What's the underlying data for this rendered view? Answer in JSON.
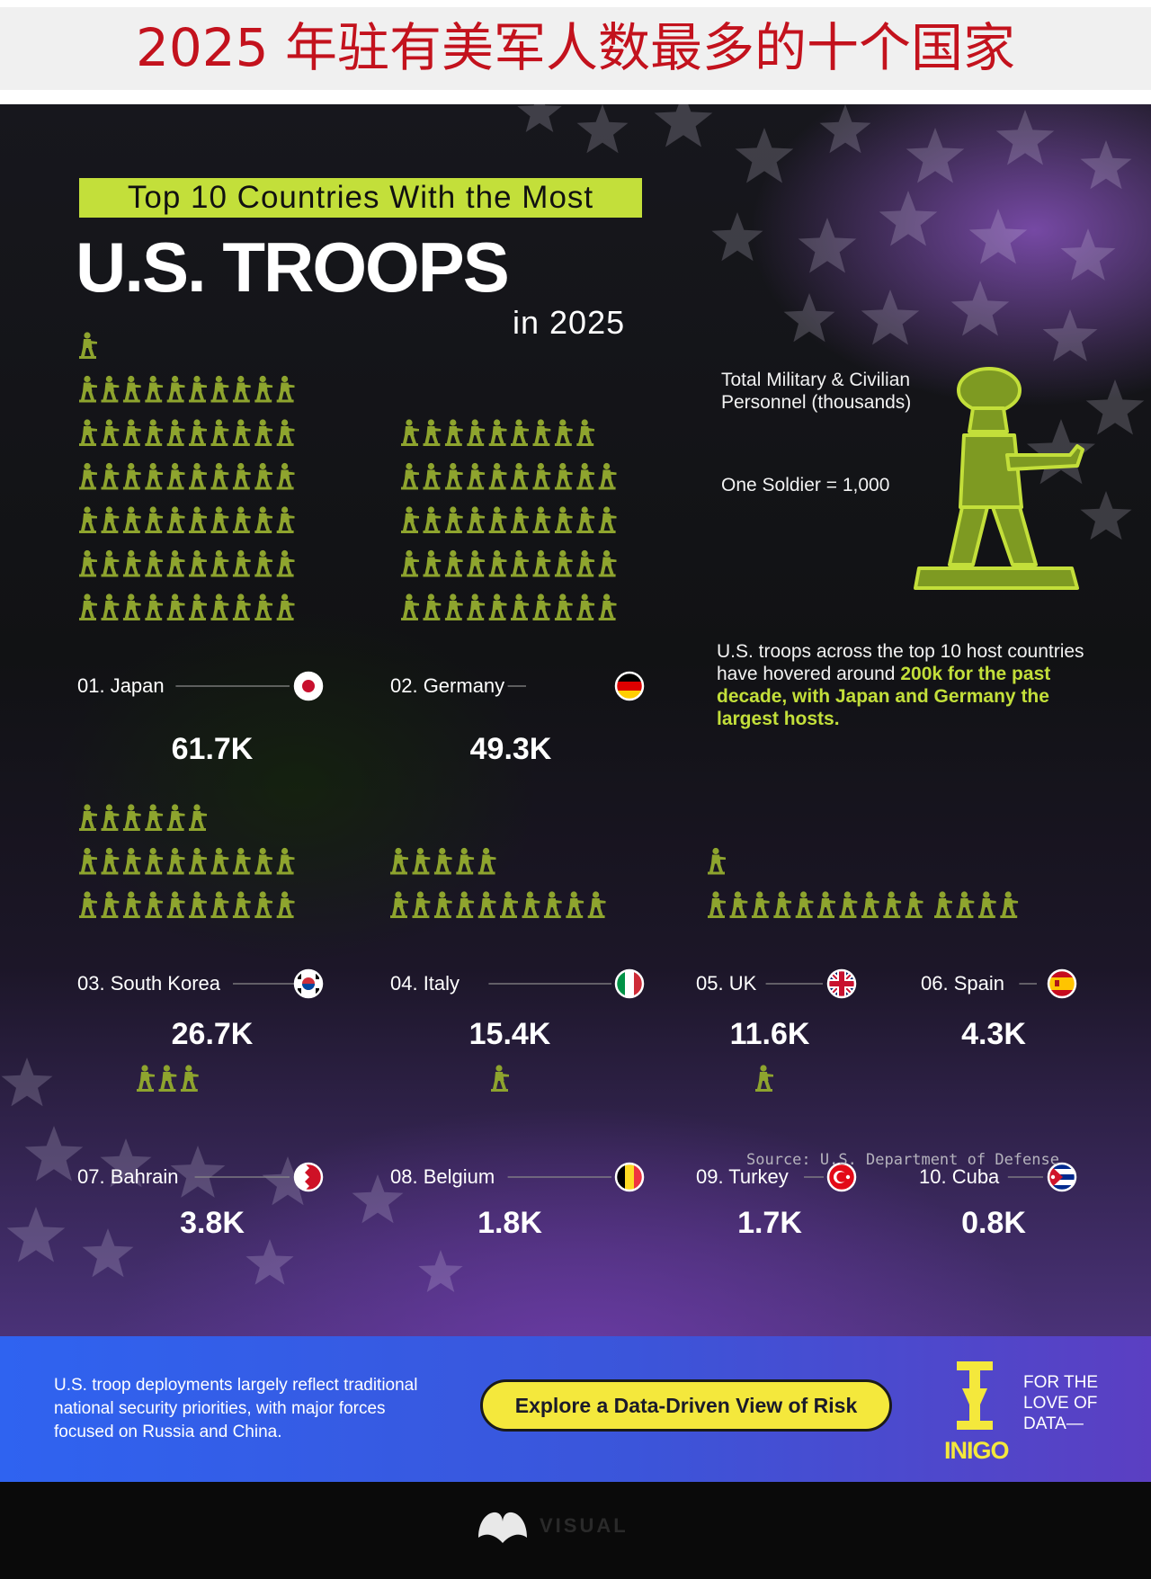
{
  "banner": {
    "title": "2025 年驻有美军人数最多的十个国家"
  },
  "header": {
    "subtitle": "Top 10 Countries With the Most",
    "title": "U.S. TROOPS",
    "year_line": "in 2025"
  },
  "legend": {
    "measure": "Total Military & Civilian Personnel (thousands)",
    "unit": "One Soldier = 1,000",
    "icon": "soldier-icon"
  },
  "note": {
    "text": "U.S. troops across the top 10 host countries have hovered around",
    "highlight": "200k for the past decade, with Japan and Germany the largest hosts."
  },
  "source": "Source: U.S. Department of Defense",
  "footer": {
    "text": "U.S. troop deployments largely reflect traditional national security priorities, with major forces focused on Russia and China.",
    "cta_label": "Explore a Data-Driven View of Risk",
    "brand": "INIGO",
    "tagline": "FOR THE LOVE OF DATA—"
  },
  "bottom": {
    "brand": "VISUAL"
  },
  "colors": {
    "accent": "#c3df3a",
    "soldier": "#8ea42e",
    "cta": "#f4e83c",
    "title_red": "#c3121d"
  },
  "chart_data": {
    "type": "pictograph",
    "title": "Top 10 Countries With the Most U.S. TROOPS in 2025",
    "unit": "One Soldier = 1,000",
    "categories": [
      "01. Japan",
      "02. Germany",
      "03. South Korea",
      "04. Italy",
      "05. UK",
      "06. Spain",
      "07. Bahrain",
      "08. Belgium",
      "09. Turkey",
      "10. Cuba"
    ],
    "values": [
      61.7,
      49.3,
      26.7,
      15.4,
      11.6,
      4.3,
      3.8,
      1.8,
      1.7,
      0.8
    ],
    "labels": [
      "61.7K",
      "49.3K",
      "26.7K",
      "15.4K",
      "11.6K",
      "4.3K",
      "3.8K",
      "1.8K",
      "1.7K",
      "0.8K"
    ],
    "flags": [
      "japan-flag",
      "germany-flag",
      "south-korea-flag",
      "italy-flag",
      "uk-flag",
      "spain-flag",
      "bahrain-flag",
      "belgium-flag",
      "turkey-flag",
      "cuba-flag"
    ]
  }
}
